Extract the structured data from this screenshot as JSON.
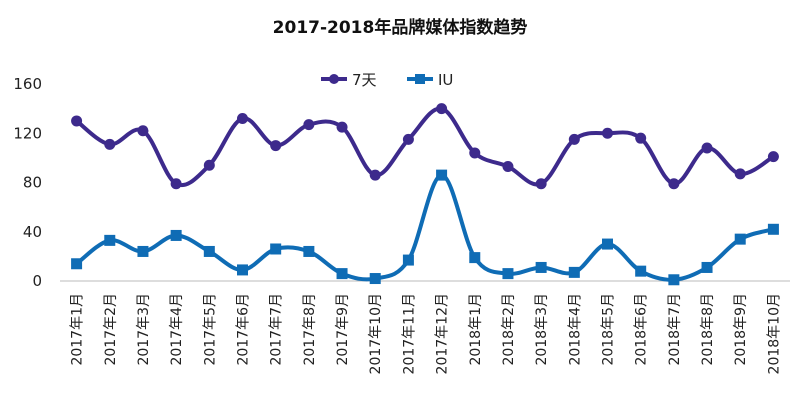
{
  "chart_data": {
    "type": "line",
    "title": "2017-2018年品牌媒体指数趋势",
    "xlabel": "",
    "ylabel": "",
    "ylim": [
      0,
      160
    ],
    "yticks": [
      0,
      40,
      80,
      120,
      160
    ],
    "grid": false,
    "legend_position": "top-center",
    "categories": [
      "2017年1月",
      "2017年2月",
      "2017年3月",
      "2017年4月",
      "2017年5月",
      "2017年6月",
      "2017年7月",
      "2017年8月",
      "2017年9月",
      "2017年10月",
      "2017年11月",
      "2017年12月",
      "2018年1月",
      "2018年2月",
      "2018年3月",
      "2018年4月",
      "2018年5月",
      "2018年6月",
      "2018年7月",
      "2018年8月",
      "2018年9月",
      "2018年10月"
    ],
    "series": [
      {
        "name": "7天",
        "color": "#3d2a8c",
        "marker": "circle",
        "values": [
          130,
          111,
          122,
          79,
          94,
          132,
          110,
          127,
          125,
          86,
          115,
          140,
          104,
          93,
          79,
          115,
          120,
          116,
          79,
          108,
          87,
          101
        ]
      },
      {
        "name": "IU",
        "color": "#0f6cb5",
        "marker": "square",
        "values": [
          14,
          33,
          24,
          37,
          24,
          9,
          26,
          24,
          6,
          2,
          17,
          86,
          19,
          6,
          11,
          7,
          30,
          8,
          1,
          11,
          34,
          42
        ]
      }
    ]
  }
}
